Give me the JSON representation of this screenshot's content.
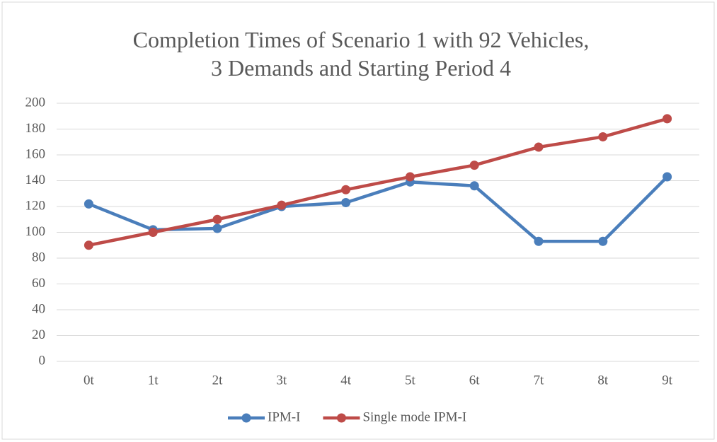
{
  "chart_data": {
    "type": "line",
    "title": "Completion Times of Scenario 1 with 92 Vehicles, 3 Demands and Starting Period 4",
    "categories": [
      "0t",
      "1t",
      "2t",
      "3t",
      "4t",
      "5t",
      "6t",
      "7t",
      "8t",
      "9t"
    ],
    "series": [
      {
        "name": "IPM-I",
        "color": "#4a7ebb",
        "values": [
          122,
          102,
          103,
          120,
          123,
          139,
          136,
          93,
          93,
          143
        ]
      },
      {
        "name": "Single mode IPM-I",
        "color": "#be4b48",
        "values": [
          90,
          100,
          110,
          121,
          133,
          143,
          152,
          166,
          174,
          188
        ]
      }
    ],
    "ylim": [
      0,
      200
    ],
    "yticks": [
      0,
      20,
      40,
      60,
      80,
      100,
      120,
      140,
      160,
      180,
      200
    ],
    "grid": true,
    "legend": "bottom"
  }
}
